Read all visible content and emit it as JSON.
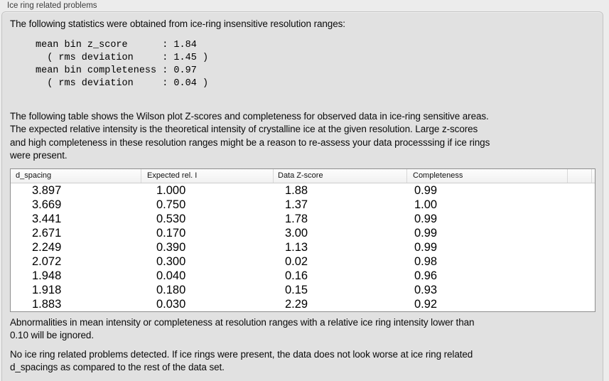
{
  "panel": {
    "title": "Ice ring related problems"
  },
  "intro": "The following statistics were obtained from ice-ring insensitive resolution ranges:",
  "stats_block": "mean bin z_score      : 1.84\n  ( rms deviation     : 1.45 )\nmean bin completeness : 0.97\n  ( rms deviation     : 0.04 )",
  "stats": {
    "mean_bin_z_score": "1.84",
    "z_score_rms_deviation": "1.45",
    "mean_bin_completeness": "0.97",
    "completeness_rms_deviation": "0.04"
  },
  "table_description": "The following table shows the Wilson plot Z-scores and completeness for observed data in ice-ring sensitive areas.\nThe expected relative intensity is the theoretical intensity of crystalline ice at the given resolution. Large z-scores\nand high completeness in these resolution ranges might be a reason to re-assess your data processsing if ice rings\nwere present.",
  "table": {
    "columns": [
      "d_spacing",
      "Expected rel. I",
      "Data Z-score",
      "Completeness"
    ],
    "rows": [
      [
        "3.897",
        "1.000",
        "1.88",
        "0.99"
      ],
      [
        "3.669",
        "0.750",
        "1.37",
        "1.00"
      ],
      [
        "3.441",
        "0.530",
        "1.78",
        "0.99"
      ],
      [
        "2.671",
        "0.170",
        "3.00",
        "0.99"
      ],
      [
        "2.249",
        "0.390",
        "1.13",
        "0.99"
      ],
      [
        "2.072",
        "0.300",
        "0.02",
        "0.98"
      ],
      [
        "1.948",
        "0.040",
        "0.16",
        "0.96"
      ],
      [
        "1.918",
        "0.180",
        "0.15",
        "0.93"
      ],
      [
        "1.883",
        "0.030",
        "2.29",
        "0.92"
      ]
    ]
  },
  "ignore_note": "Abnormalities in mean intensity or completeness at resolution ranges with a relative ice ring intensity lower than\n0.10 will be ignored.",
  "conclusion": "No ice ring related problems detected. If ice rings were present, the data does not look worse at ice ring related\nd_spacings as compared to the rest of the data set.",
  "colors": {
    "page_bg": "#ececec",
    "panel_bg": "#e1e1e1",
    "panel_border": "#c4c4c4",
    "table_border": "#8e8e8e",
    "table_header_bg": "#f6f6f6"
  }
}
